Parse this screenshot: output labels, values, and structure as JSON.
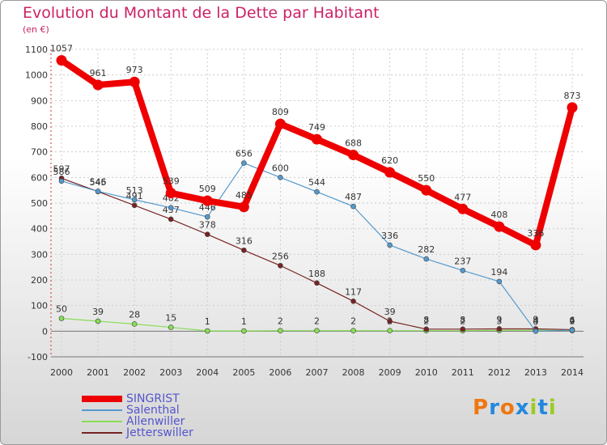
{
  "chart_data": {
    "type": "line",
    "title": "Evolution du Montant de la Dette par Habitant",
    "subtitle": "(en €)",
    "x": [
      "2000",
      "2001",
      "2002",
      "2003",
      "2004",
      "2005",
      "2006",
      "2007",
      "2008",
      "2009",
      "2010",
      "2011",
      "2012",
      "2013",
      "2014"
    ],
    "ylim": [
      -100,
      1100
    ],
    "yticks": [
      "-100",
      "0",
      "100",
      "200",
      "300",
      "400",
      "500",
      "600",
      "700",
      "800",
      "900",
      "1000",
      "1100"
    ],
    "grid": true,
    "legend_position": "bottom-left",
    "series": [
      {
        "name": "SINGRIST",
        "color": "#ee0000",
        "values": [
          1057,
          961,
          973,
          539,
          509,
          485,
          809,
          749,
          688,
          620,
          550,
          477,
          408,
          336,
          873
        ],
        "labels": [
          "1057",
          "961",
          "973",
          "539",
          "509",
          "485",
          "809",
          "749",
          "688",
          "620",
          "550",
          "477",
          "408",
          "336",
          "873"
        ]
      },
      {
        "name": "Salenthal",
        "color": "#5599cc",
        "values": [
          586,
          546,
          513,
          482,
          446,
          656,
          600,
          544,
          487,
          336,
          282,
          237,
          194,
          0,
          4
        ],
        "labels": [
          "586",
          "546",
          "513",
          "482",
          "446",
          "656",
          "600",
          "544",
          "487",
          "336",
          "282",
          "237",
          "194",
          "0",
          "4"
        ]
      },
      {
        "name": "Allenwiller",
        "color": "#88dd55",
        "values": [
          50,
          39,
          28,
          15,
          1,
          1,
          2,
          2,
          2,
          2,
          2,
          2,
          3,
          4,
          2
        ],
        "labels": [
          "50",
          "39",
          "28",
          "15",
          "1",
          "1",
          "2",
          "2",
          "2",
          "2",
          "2",
          "2",
          "3",
          "4",
          "2"
        ]
      },
      {
        "name": "Jetterswiller",
        "color": "#772222",
        "values": [
          597,
          545,
          491,
          437,
          378,
          316,
          256,
          188,
          117,
          39,
          8,
          8,
          9,
          9,
          6
        ],
        "labels": [
          "597",
          "545",
          "491",
          "437",
          "378",
          "316",
          "256",
          "188",
          "117",
          "39",
          "8",
          "8",
          "9",
          "9",
          "6"
        ]
      }
    ]
  },
  "logo": {
    "text": "Proxiti",
    "letters": [
      "P",
      "r",
      "o",
      "x",
      "i",
      "t",
      "i"
    ],
    "colors": [
      "#ee7711",
      "#2288dd",
      "#ee7711",
      "#2288dd",
      "#99cc22",
      "#2288dd",
      "#99cc22"
    ]
  }
}
